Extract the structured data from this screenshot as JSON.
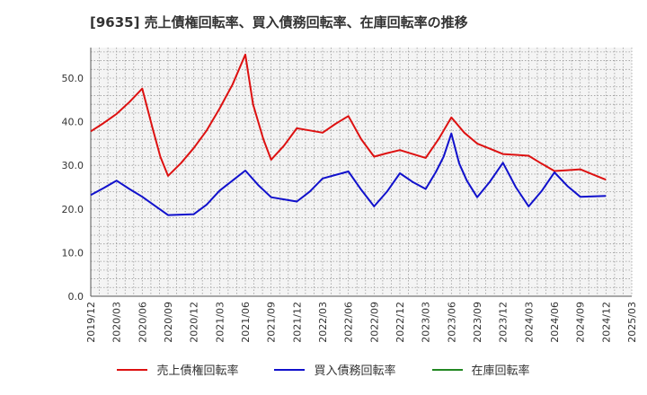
{
  "chart_data": {
    "type": "line",
    "title": "[9635]  売上債権回転率、買入債務回転率、在庫回転率の推移",
    "xlabel": "",
    "ylabel": "",
    "ylim": [
      0,
      57
    ],
    "yticks": [
      "0.0",
      "10.0",
      "20.0",
      "30.0",
      "40.0",
      "50.0"
    ],
    "ytick_values": [
      0,
      10,
      20,
      30,
      40,
      50
    ],
    "xticks": [
      "2019/12",
      "2020/03",
      "2020/06",
      "2020/09",
      "2020/12",
      "2021/03",
      "2021/06",
      "2021/09",
      "2021/12",
      "2022/03",
      "2022/06",
      "2022/09",
      "2022/12",
      "2023/03",
      "2023/06",
      "2023/09",
      "2023/12",
      "2024/03",
      "2024/06",
      "2024/09",
      "2024/12",
      "2025/03"
    ],
    "grid": true,
    "legend_position": "bottom",
    "series": [
      {
        "name": "売上債権回転率",
        "color": "#dd1111",
        "x": [
          0,
          0.5,
          1,
          1.5,
          2,
          2.4,
          2.7,
          3,
          3.5,
          4,
          4.5,
          5,
          5.5,
          6,
          6.3,
          6.7,
          7,
          7.5,
          8,
          8.5,
          9,
          9.5,
          10,
          10.5,
          11,
          11.5,
          12,
          12.5,
          13,
          13.5,
          14,
          14.5,
          15,
          15.5,
          16,
          16.5,
          17,
          17.5,
          18,
          18.5,
          19,
          19.5,
          20
        ],
        "values": [
          37.8,
          39.7,
          41.8,
          44.5,
          47.6,
          38.5,
          32.0,
          27.6,
          30.5,
          34.0,
          38.0,
          43.0,
          48.5,
          55.4,
          44.0,
          36.0,
          31.3,
          34.5,
          38.5,
          38.0,
          37.5,
          39.5,
          41.3,
          36.0,
          32.0,
          32.8,
          33.5,
          32.6,
          31.7,
          36.0,
          41.0,
          37.5,
          35.0,
          33.8,
          32.6,
          32.4,
          32.2,
          30.4,
          28.7,
          28.9,
          29.1,
          27.9,
          26.7
        ]
      },
      {
        "name": "買入債務回転率",
        "color": "#1111cc",
        "x": [
          0,
          0.5,
          1,
          1.5,
          2,
          2.5,
          3,
          3.5,
          4,
          4.5,
          5,
          5.5,
          6,
          6.5,
          7,
          7.5,
          8,
          8.5,
          9,
          9.5,
          10,
          10.5,
          11,
          11.5,
          12,
          12.5,
          13,
          13.4,
          13.7,
          14,
          14.3,
          14.6,
          15,
          15.5,
          16,
          16.5,
          17,
          17.5,
          18,
          18.5,
          19,
          19.5,
          20
        ],
        "values": [
          23.2,
          24.8,
          26.5,
          24.6,
          22.8,
          20.7,
          18.6,
          18.7,
          18.8,
          21.0,
          24.2,
          26.5,
          28.8,
          25.5,
          22.7,
          22.2,
          21.7,
          24.0,
          27.0,
          27.8,
          28.6,
          24.4,
          20.6,
          24.0,
          28.2,
          26.2,
          24.6,
          28.5,
          32.0,
          37.3,
          30.5,
          26.5,
          22.7,
          26.3,
          30.6,
          25.0,
          20.6,
          24.1,
          28.4,
          25.3,
          22.8,
          22.9,
          23.0
        ]
      },
      {
        "name": "在庫回転率",
        "color": "#228822",
        "x": [],
        "values": []
      }
    ]
  }
}
